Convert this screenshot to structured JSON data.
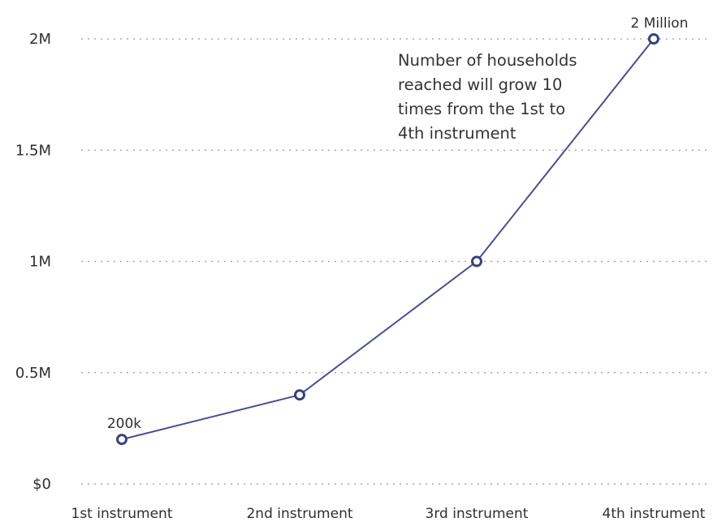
{
  "chart_data": {
    "type": "line",
    "categories": [
      "1st instrument",
      "2nd instrument",
      "3rd instrument",
      "4th instrument"
    ],
    "values": [
      200000,
      400000,
      1000000,
      2000000
    ],
    "ylim": [
      0,
      2000000
    ],
    "yticks": [
      {
        "value": 0,
        "label": "$0"
      },
      {
        "value": 500000,
        "label": "0.5M"
      },
      {
        "value": 1000000,
        "label": "1M"
      },
      {
        "value": 1500000,
        "label": "1.5M"
      },
      {
        "value": 2000000,
        "label": "2M"
      }
    ],
    "grid": true,
    "data_labels": [
      {
        "index": 0,
        "text": "200k"
      },
      {
        "index": 3,
        "text": "2 Million"
      }
    ],
    "annotation": [
      "Number of households",
      "reached will grow 10",
      "times from the 1st to",
      "4th instrument"
    ],
    "colors": {
      "line": "#4a4f8c",
      "marker_stroke": "#3a4080",
      "grid": "#9a9a9a"
    }
  }
}
